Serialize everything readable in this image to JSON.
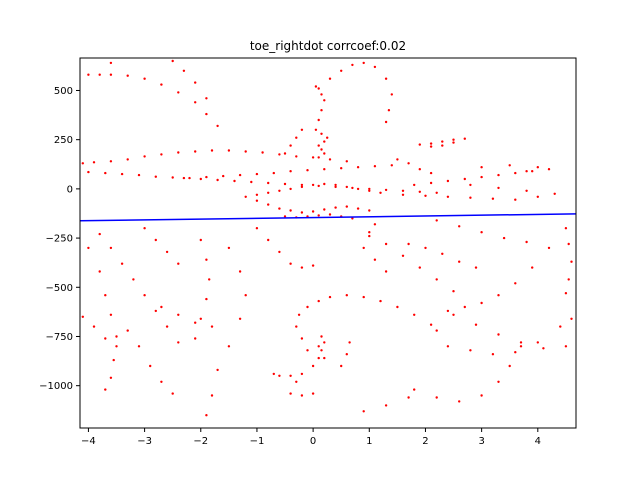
{
  "chart_data": {
    "type": "scatter",
    "title": "toe_rightdot corrcoef:0.02",
    "xlabel": "",
    "ylabel": "",
    "xlim": [
      -4.15,
      4.68
    ],
    "ylim": [
      -1215,
      665
    ],
    "x_ticks": [
      -4,
      -3,
      -2,
      -1,
      0,
      1,
      2,
      3,
      4
    ],
    "y_ticks": [
      500,
      250,
      0,
      -250,
      -500,
      -750,
      -1000
    ],
    "grid": false,
    "point_color": "#ff0000",
    "line_color": "#0000ff",
    "fit_line": {
      "x": [
        -4.15,
        4.68
      ],
      "y": [
        -162,
        -127
      ]
    },
    "series": [
      {
        "type": "scatter",
        "points": [
          [
            -4.1,
            130
          ],
          [
            -3.9,
            135
          ],
          [
            -3.6,
            140
          ],
          [
            -3.3,
            150
          ],
          [
            -3.0,
            165
          ],
          [
            -2.7,
            175
          ],
          [
            -2.4,
            185
          ],
          [
            -2.1,
            190
          ],
          [
            -1.8,
            195
          ],
          [
            -1.5,
            195
          ],
          [
            -1.2,
            190
          ],
          [
            -0.9,
            185
          ],
          [
            -0.6,
            175
          ],
          [
            -0.3,
            165
          ],
          [
            0.0,
            160
          ],
          [
            0.3,
            150
          ],
          [
            0.6,
            140
          ],
          [
            -4.0,
            85
          ],
          [
            -3.7,
            80
          ],
          [
            -3.4,
            75
          ],
          [
            -3.1,
            70
          ],
          [
            -2.8,
            62
          ],
          [
            -2.5,
            58
          ],
          [
            -2.2,
            55
          ],
          [
            -1.9,
            60
          ],
          [
            -1.6,
            65
          ],
          [
            -1.3,
            70
          ],
          [
            -1.0,
            75
          ],
          [
            -0.7,
            80
          ],
          [
            -0.4,
            90
          ],
          [
            -0.1,
            95
          ],
          [
            0.2,
            100
          ],
          [
            0.5,
            105
          ],
          [
            0.8,
            110
          ],
          [
            1.1,
            115
          ],
          [
            1.4,
            120
          ],
          [
            -2.3,
            55
          ],
          [
            -2.0,
            50
          ],
          [
            -1.7,
            45
          ],
          [
            -1.4,
            40
          ],
          [
            -1.1,
            35
          ],
          [
            -0.8,
            30
          ],
          [
            -0.5,
            25
          ],
          [
            -0.2,
            20
          ],
          [
            0.1,
            15
          ],
          [
            0.4,
            10
          ],
          [
            0.7,
            5
          ],
          [
            1.0,
            0
          ],
          [
            1.3,
            -5
          ],
          [
            1.6,
            -10
          ],
          [
            1.9,
            -15
          ],
          [
            2.2,
            -20
          ],
          [
            1.8,
            20
          ],
          [
            2.1,
            30
          ],
          [
            2.4,
            40
          ],
          [
            2.7,
            50
          ],
          [
            3.0,
            60
          ],
          [
            3.3,
            70
          ],
          [
            3.6,
            80
          ],
          [
            3.9,
            90
          ],
          [
            4.2,
            100
          ],
          [
            1.6,
            -30
          ],
          [
            2.0,
            -35
          ],
          [
            2.4,
            -40
          ],
          [
            2.8,
            -45
          ],
          [
            3.2,
            -50
          ],
          [
            3.6,
            -55
          ],
          [
            4.0,
            -40
          ],
          [
            4.3,
            -25
          ],
          [
            3.8,
            -10
          ],
          [
            3.3,
            5
          ],
          [
            2.8,
            20
          ],
          [
            -1.0,
            -60
          ],
          [
            -0.8,
            -80
          ],
          [
            -0.6,
            -100
          ],
          [
            -0.4,
            -110
          ],
          [
            -0.2,
            -120
          ],
          [
            0.0,
            -115
          ],
          [
            0.2,
            -105
          ],
          [
            0.4,
            -95
          ],
          [
            0.6,
            -90
          ],
          [
            0.8,
            -100
          ],
          [
            1.0,
            -110
          ],
          [
            -1.2,
            -40
          ],
          [
            -1.0,
            -30
          ],
          [
            -0.8,
            -20
          ],
          [
            -0.6,
            -10
          ],
          [
            -0.4,
            0
          ],
          [
            -0.2,
            10
          ],
          [
            0.0,
            20
          ],
          [
            0.2,
            25
          ],
          [
            0.4,
            20
          ],
          [
            0.6,
            10
          ],
          [
            0.8,
            0
          ],
          [
            1.0,
            -10
          ],
          [
            1.2,
            -20
          ],
          [
            -0.5,
            -140
          ],
          [
            -0.3,
            -145
          ],
          [
            -0.1,
            -140
          ],
          [
            0.1,
            -135
          ],
          [
            0.3,
            -130
          ],
          [
            0.5,
            -140
          ],
          [
            0.7,
            -150
          ],
          [
            2.1,
            230
          ],
          [
            2.3,
            240
          ],
          [
            2.5,
            250
          ],
          [
            2.7,
            255
          ],
          [
            2.5,
            235
          ],
          [
            2.3,
            220
          ],
          [
            2.1,
            215
          ],
          [
            1.9,
            225
          ],
          [
            0.1,
            160
          ],
          [
            0.2,
            180
          ],
          [
            0.15,
            200
          ],
          [
            0.1,
            220
          ],
          [
            0.2,
            240
          ],
          [
            0.25,
            260
          ],
          [
            0.15,
            280
          ],
          [
            0.05,
            300
          ],
          [
            0.1,
            350
          ],
          [
            0.15,
            400
          ],
          [
            0.2,
            450
          ],
          [
            0.15,
            480
          ],
          [
            0.1,
            510
          ],
          [
            0.05,
            520
          ],
          [
            0.3,
            560
          ],
          [
            0.5,
            600
          ],
          [
            0.7,
            630
          ],
          [
            0.9,
            640
          ],
          [
            1.1,
            620
          ],
          [
            1.3,
            560
          ],
          [
            1.4,
            480
          ],
          [
            1.35,
            400
          ],
          [
            1.3,
            340
          ],
          [
            -0.2,
            300
          ],
          [
            -0.3,
            260
          ],
          [
            -0.4,
            220
          ],
          [
            -0.5,
            180
          ],
          [
            -3.6,
            580
          ],
          [
            -3.3,
            575
          ],
          [
            -3.0,
            560
          ],
          [
            -2.7,
            530
          ],
          [
            -2.4,
            490
          ],
          [
            -2.1,
            440
          ],
          [
            -1.9,
            380
          ],
          [
            -1.7,
            320
          ],
          [
            -2.5,
            650
          ],
          [
            -2.3,
            600
          ],
          [
            -2.1,
            540
          ],
          [
            -1.9,
            460
          ],
          [
            -4.0,
            580
          ],
          [
            -3.8,
            580
          ],
          [
            -3.6,
            640
          ],
          [
            -3.8,
            -230
          ],
          [
            -3.6,
            -300
          ],
          [
            -3.4,
            -380
          ],
          [
            -3.2,
            -460
          ],
          [
            -3.0,
            -540
          ],
          [
            -2.8,
            -620
          ],
          [
            -2.6,
            -700
          ],
          [
            -2.4,
            -780
          ],
          [
            -4.0,
            -300
          ],
          [
            -3.8,
            -420
          ],
          [
            -3.7,
            -540
          ],
          [
            -3.6,
            -640
          ],
          [
            -3.5,
            -750
          ],
          [
            -3.55,
            -870
          ],
          [
            -3.6,
            -960
          ],
          [
            -3.7,
            -1020
          ],
          [
            -3.3,
            -720
          ],
          [
            -3.1,
            -800
          ],
          [
            -2.9,
            -900
          ],
          [
            -2.7,
            -980
          ],
          [
            -2.5,
            -1040
          ],
          [
            -2.0,
            -260
          ],
          [
            -1.9,
            -360
          ],
          [
            -1.85,
            -460
          ],
          [
            -1.9,
            -560
          ],
          [
            -2.0,
            -660
          ],
          [
            -2.1,
            -760
          ],
          [
            -1.5,
            -300
          ],
          [
            -1.3,
            -420
          ],
          [
            -1.2,
            -540
          ],
          [
            -1.3,
            -660
          ],
          [
            -1.5,
            -800
          ],
          [
            -1.7,
            -920
          ],
          [
            -1.8,
            -1050
          ],
          [
            -1.9,
            -1150
          ],
          [
            -4.1,
            -650
          ],
          [
            -3.9,
            -700
          ],
          [
            -3.7,
            -760
          ],
          [
            -3.5,
            -800
          ],
          [
            -2.7,
            -600
          ],
          [
            -2.4,
            -640
          ],
          [
            -2.1,
            -680
          ],
          [
            -1.8,
            -700
          ],
          [
            0.0,
            -1040
          ],
          [
            -0.2,
            -1050
          ],
          [
            -0.4,
            -1040
          ],
          [
            -0.3,
            -980
          ],
          [
            -0.2,
            -940
          ],
          [
            0.0,
            -900
          ],
          [
            0.1,
            -860
          ],
          [
            0.1,
            -800
          ],
          [
            0.15,
            -750
          ],
          [
            0.2,
            -780
          ],
          [
            0.15,
            -820
          ],
          [
            0.2,
            -860
          ],
          [
            -0.4,
            -950
          ],
          [
            -0.6,
            -950
          ],
          [
            -0.7,
            -940
          ],
          [
            0.5,
            -900
          ],
          [
            0.6,
            -840
          ],
          [
            0.65,
            -780
          ],
          [
            0.6,
            -540
          ],
          [
            0.9,
            -550
          ],
          [
            1.2,
            -570
          ],
          [
            1.5,
            -600
          ],
          [
            1.8,
            -640
          ],
          [
            2.1,
            -690
          ],
          [
            2.2,
            -720
          ],
          [
            -0.1,
            -820
          ],
          [
            -0.2,
            -760
          ],
          [
            -0.3,
            -700
          ],
          [
            -0.25,
            -640
          ],
          [
            -0.1,
            -600
          ],
          [
            0.1,
            -570
          ],
          [
            0.3,
            -550
          ],
          [
            2.5,
            -640
          ],
          [
            2.9,
            -690
          ],
          [
            3.3,
            -740
          ],
          [
            3.7,
            -780
          ],
          [
            4.1,
            -810
          ],
          [
            4.5,
            -800
          ],
          [
            2.4,
            -800
          ],
          [
            2.8,
            -820
          ],
          [
            3.2,
            -840
          ],
          [
            3.6,
            -830
          ],
          [
            4.0,
            -780
          ],
          [
            4.4,
            -700
          ],
          [
            4.6,
            -660
          ],
          [
            4.5,
            -200
          ],
          [
            4.55,
            -280
          ],
          [
            4.6,
            -370
          ],
          [
            4.55,
            -460
          ],
          [
            4.5,
            -530
          ],
          [
            3.9,
            -400
          ],
          [
            3.6,
            -480
          ],
          [
            3.3,
            -540
          ],
          [
            3.0,
            -580
          ],
          [
            2.7,
            -600
          ],
          [
            2.4,
            -620
          ],
          [
            1.0,
            -220
          ],
          [
            1.3,
            -280
          ],
          [
            1.6,
            -340
          ],
          [
            1.9,
            -400
          ],
          [
            2.2,
            -460
          ],
          [
            2.5,
            -520
          ],
          [
            -1.0,
            -200
          ],
          [
            -0.8,
            -260
          ],
          [
            -0.6,
            -320
          ],
          [
            -0.4,
            -380
          ],
          [
            -0.2,
            -400
          ],
          [
            0.0,
            -390
          ],
          [
            1.7,
            -280
          ],
          [
            2.0,
            -300
          ],
          [
            2.3,
            -330
          ],
          [
            2.6,
            -370
          ],
          [
            2.9,
            -400
          ],
          [
            2.2,
            -160
          ],
          [
            2.6,
            -190
          ],
          [
            3.0,
            -220
          ],
          [
            3.4,
            -250
          ],
          [
            3.8,
            -270
          ],
          [
            4.2,
            -300
          ],
          [
            -3.0,
            -200
          ],
          [
            -2.8,
            -260
          ],
          [
            -2.6,
            -320
          ],
          [
            -2.4,
            -380
          ],
          [
            1.8,
            -1020
          ],
          [
            2.2,
            -1060
          ],
          [
            2.6,
            -1080
          ],
          [
            3.0,
            -1050
          ],
          [
            3.3,
            -980
          ],
          [
            3.5,
            -900
          ],
          [
            3.7,
            -800
          ],
          [
            0.9,
            -1130
          ],
          [
            1.3,
            -1100
          ],
          [
            1.7,
            -1060
          ],
          [
            1.1,
            -180
          ],
          [
            1.0,
            -240
          ],
          [
            0.9,
            -300
          ],
          [
            1.1,
            -360
          ],
          [
            1.3,
            -420
          ],
          [
            3.8,
            90
          ],
          [
            4.0,
            110
          ],
          [
            3.5,
            120
          ],
          [
            3.0,
            110
          ],
          [
            1.5,
            150
          ],
          [
            1.7,
            130
          ],
          [
            1.9,
            100
          ],
          [
            2.1,
            80
          ]
        ]
      }
    ]
  }
}
